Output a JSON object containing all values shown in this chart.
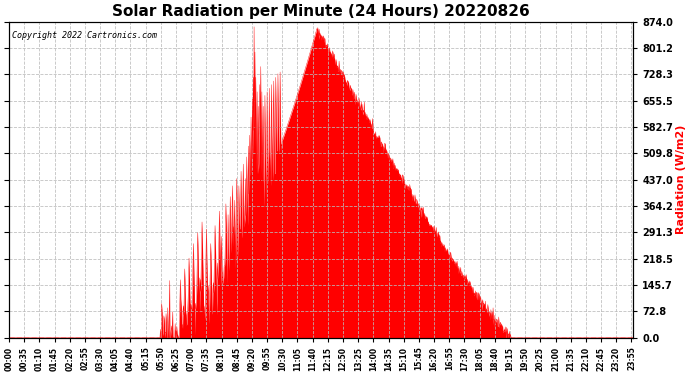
{
  "title": "Solar Radiation per Minute (24 Hours) 20220826",
  "copyright_text": "Copyright 2022 Cartronics.com",
  "ylabel_right": "Radiation (W/m2)",
  "ylabel_right_color": "#ff0000",
  "title_fontsize": 11,
  "background_color": "#ffffff",
  "plot_bg_color": "#ffffff",
  "yticks": [
    0.0,
    72.8,
    145.7,
    218.5,
    291.3,
    364.2,
    437.0,
    509.8,
    582.7,
    655.5,
    728.3,
    801.2,
    874.0
  ],
  "ymax": 874.0,
  "fill_color": "#ff0000",
  "line_color": "#ff0000",
  "dashed_line_color": "#ff0000",
  "grid_color": "#bbbbbb",
  "total_minutes": 1440,
  "sunrise_min": 348,
  "sunset_min": 1158,
  "peak_min": 710,
  "peak_val": 855,
  "x_tick_labels": [
    "00:00",
    "00:35",
    "01:10",
    "01:45",
    "02:20",
    "02:55",
    "03:30",
    "04:05",
    "04:40",
    "05:15",
    "05:50",
    "06:25",
    "07:00",
    "07:35",
    "08:10",
    "08:45",
    "09:20",
    "09:55",
    "10:30",
    "11:05",
    "11:40",
    "12:15",
    "12:50",
    "13:25",
    "14:00",
    "14:35",
    "15:10",
    "15:45",
    "16:20",
    "16:55",
    "17:30",
    "18:05",
    "18:40",
    "19:15",
    "19:50",
    "20:25",
    "21:00",
    "21:35",
    "22:10",
    "22:45",
    "23:20",
    "23:55"
  ]
}
